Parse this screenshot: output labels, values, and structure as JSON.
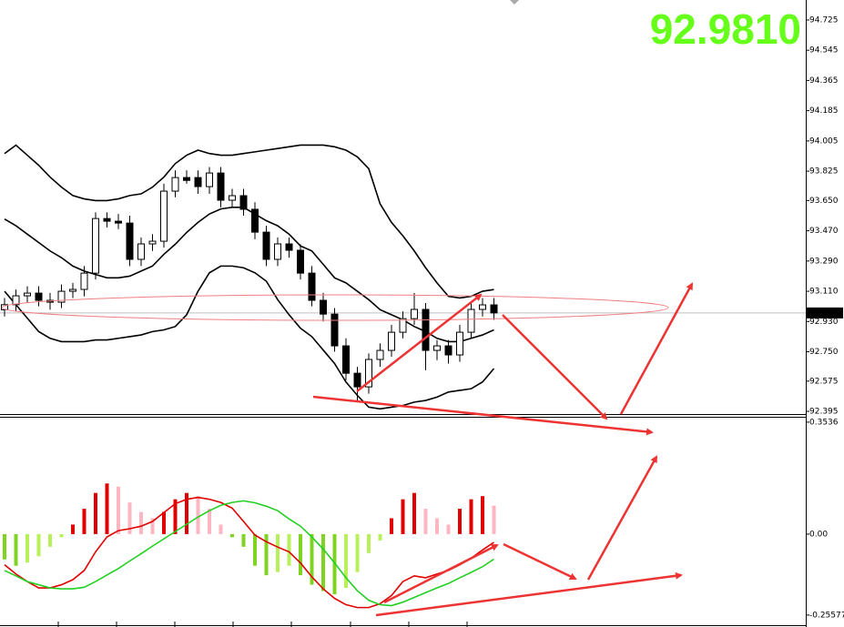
{
  "price_display": "92.9810",
  "chart_data": [
    {
      "type": "candlestick",
      "ylim": [
        92.379,
        94.844
      ],
      "yticks": [
        94.725,
        94.545,
        94.365,
        94.185,
        94.005,
        93.825,
        {
          "value": 93.65,
          "label": "93.650"
        },
        {
          "value": 93.47,
          "label": "93.470"
        },
        {
          "value": 93.29,
          "label": "93.290"
        },
        {
          "value": 93.11,
          "label": "93.110"
        },
        {
          "value": 92.93,
          "label": "92.930"
        },
        {
          "value": 92.75,
          "label": "92.750"
        },
        92.575,
        92.395
      ],
      "last_price": 92.981,
      "up_color": "#ffffff",
      "down_color": "#000000",
      "outline_color": "#000000",
      "open": [
        93.0,
        93.03,
        93.083,
        93.099,
        93.056,
        93.045,
        93.11,
        93.121,
        93.218,
        93.543,
        93.527,
        93.516,
        93.3,
        93.392,
        93.408,
        93.706,
        93.787,
        93.787,
        93.733,
        93.814,
        93.652,
        93.679,
        93.598,
        93.462,
        93.3,
        93.392,
        93.354,
        93.218,
        93.056,
        92.974,
        92.785,
        92.622,
        92.541,
        92.704,
        92.758,
        92.866,
        92.947,
        93.002,
        92.758,
        92.785,
        92.731,
        92.866,
        93.002,
        93.029
      ],
      "high": [
        93.07,
        93.12,
        93.14,
        93.14,
        93.1,
        93.15,
        93.16,
        93.26,
        93.58,
        93.58,
        93.57,
        93.56,
        93.43,
        93.45,
        93.75,
        93.83,
        93.83,
        93.83,
        93.85,
        93.85,
        93.72,
        93.72,
        93.64,
        93.5,
        93.43,
        93.43,
        93.39,
        93.26,
        93.1,
        93.01,
        92.83,
        92.66,
        92.74,
        92.8,
        92.91,
        92.99,
        93.1,
        93.04,
        92.82,
        92.82,
        92.91,
        93.04,
        93.07,
        93.07
      ],
      "low": [
        92.96,
        92.99,
        93.04,
        93.02,
        93.0,
        93.01,
        93.07,
        93.08,
        93.18,
        93.49,
        93.48,
        93.26,
        93.26,
        93.35,
        93.37,
        93.67,
        93.75,
        93.69,
        93.69,
        93.61,
        93.61,
        93.56,
        93.42,
        93.26,
        93.26,
        93.31,
        93.18,
        93.02,
        92.93,
        92.75,
        92.58,
        92.45,
        92.5,
        92.66,
        92.72,
        92.83,
        92.91,
        92.64,
        92.7,
        92.68,
        92.69,
        92.83,
        92.96,
        92.94
      ],
      "close": [
        93.03,
        93.083,
        93.099,
        93.056,
        93.045,
        93.11,
        93.121,
        93.218,
        93.543,
        93.527,
        93.516,
        93.3,
        93.392,
        93.408,
        93.706,
        93.787,
        93.77,
        93.733,
        93.814,
        93.652,
        93.679,
        93.598,
        93.462,
        93.3,
        93.392,
        93.354,
        93.218,
        93.056,
        92.974,
        92.785,
        92.622,
        92.541,
        92.704,
        92.758,
        92.866,
        92.947,
        93.002,
        92.758,
        92.785,
        92.731,
        92.866,
        93.002,
        93.029,
        92.981
      ],
      "bands": [
        {
          "color": "#000000",
          "values": [
            93.93,
            93.98,
            93.92,
            93.86,
            93.79,
            93.73,
            93.68,
            93.66,
            93.65,
            93.65,
            93.66,
            93.68,
            93.69,
            93.73,
            93.79,
            93.87,
            93.92,
            93.95,
            93.93,
            93.92,
            93.92,
            93.93,
            93.94,
            93.95,
            93.96,
            93.97,
            93.98,
            93.98,
            93.98,
            93.97,
            93.95,
            93.91,
            93.84,
            93.63,
            93.52,
            93.44,
            93.35,
            93.25,
            93.16,
            93.08,
            93.07,
            93.08,
            93.11,
            93.12
          ]
        },
        {
          "color": "#000000",
          "values": [
            93.54,
            93.5,
            93.45,
            93.4,
            93.35,
            93.31,
            93.26,
            93.23,
            93.21,
            93.19,
            93.19,
            93.2,
            93.23,
            93.26,
            93.33,
            93.39,
            93.46,
            93.52,
            93.57,
            93.6,
            93.61,
            93.61,
            93.57,
            93.53,
            93.5,
            93.45,
            93.38,
            93.35,
            93.27,
            93.19,
            93.16,
            93.11,
            93.06,
            93.0,
            92.97,
            92.94,
            92.9,
            92.87,
            92.83,
            92.81,
            92.81,
            92.83,
            92.85,
            92.88
          ]
        },
        {
          "color": "#000000",
          "values": [
            93.11,
            93.03,
            92.95,
            92.87,
            92.83,
            92.81,
            92.81,
            92.81,
            92.82,
            92.82,
            92.83,
            92.84,
            92.85,
            92.87,
            92.88,
            92.9,
            92.97,
            93.11,
            93.22,
            93.26,
            93.26,
            93.25,
            93.22,
            93.17,
            93.06,
            92.97,
            92.89,
            92.84,
            92.76,
            92.68,
            92.57,
            92.49,
            92.42,
            92.41,
            92.42,
            92.43,
            92.45,
            92.46,
            92.48,
            92.51,
            92.52,
            92.53,
            92.57,
            92.65
          ]
        }
      ]
    },
    {
      "type": "macd",
      "ylim": [
        -0.2906,
        0.3706
      ],
      "yticks": [
        0.3536,
        {
          "value": 0,
          "label": "0.00"
        },
        -0.25577
      ],
      "hist_colors": {
        "up_rising": "#e00000",
        "up_falling": "#ffb6c1",
        "down_falling": "#7fd321",
        "down_rising": "#b8f05a"
      },
      "values": [
        -0.08,
        -0.1,
        -0.09,
        -0.07,
        -0.04,
        -0.01,
        0.03,
        0.08,
        0.13,
        0.16,
        0.15,
        0.1,
        0.07,
        0.05,
        0.07,
        0.11,
        0.13,
        0.12,
        0.08,
        0.03,
        -0.01,
        -0.04,
        -0.1,
        -0.13,
        -0.12,
        -0.1,
        -0.13,
        -0.16,
        -0.18,
        -0.19,
        -0.17,
        -0.12,
        -0.06,
        -0.02,
        0.05,
        0.11,
        0.13,
        0.08,
        0.05,
        0.03,
        0.08,
        0.11,
        0.12,
        0.09
      ],
      "lines": [
        {
          "color": "#e00000",
          "values": [
            -0.097,
            -0.126,
            -0.15,
            -0.17,
            -0.17,
            -0.16,
            -0.144,
            -0.115,
            -0.056,
            -0.009,
            0.011,
            0.017,
            0.025,
            0.04,
            0.068,
            0.096,
            0.11,
            0.116,
            0.11,
            0.1,
            0.082,
            0.04,
            -0.003,
            -0.024,
            -0.041,
            -0.056,
            -0.091,
            -0.135,
            -0.173,
            -0.203,
            -0.223,
            -0.232,
            -0.232,
            -0.22,
            -0.194,
            -0.15,
            -0.132,
            -0.138,
            -0.126,
            -0.115,
            -0.097,
            -0.076,
            -0.05,
            -0.026
          ]
        },
        {
          "color": "#22d022",
          "values": [
            -0.115,
            -0.132,
            -0.15,
            -0.16,
            -0.17,
            -0.173,
            -0.173,
            -0.168,
            -0.15,
            -0.129,
            -0.109,
            -0.085,
            -0.062,
            -0.038,
            -0.015,
            0.008,
            0.031,
            0.054,
            0.074,
            0.091,
            0.1,
            0.105,
            0.099,
            0.088,
            0.074,
            0.048,
            0.025,
            -0.009,
            -0.047,
            -0.091,
            -0.138,
            -0.179,
            -0.209,
            -0.223,
            -0.226,
            -0.215,
            -0.2,
            -0.185,
            -0.17,
            -0.156,
            -0.138,
            -0.121,
            -0.103,
            -0.079
          ]
        }
      ]
    }
  ]
}
